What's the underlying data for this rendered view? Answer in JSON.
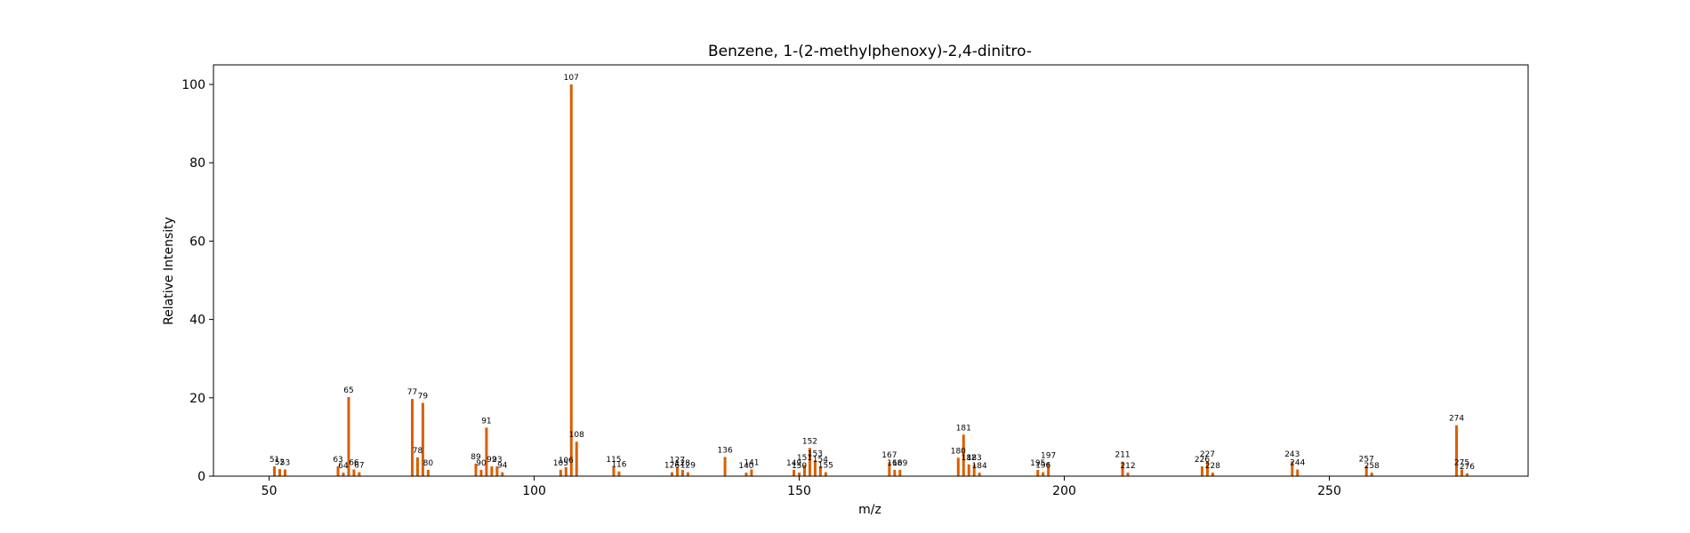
{
  "chart_data": {
    "type": "bar",
    "title": "Benzene, 1-(2-methylphenoxy)-2,4-dinitro-",
    "xlabel": "m/z",
    "ylabel": "Relative Intensity",
    "xlim": [
      39.5,
      287.5
    ],
    "ylim": [
      0,
      105
    ],
    "xticks": [
      50,
      100,
      150,
      200,
      250
    ],
    "yticks": [
      0,
      20,
      40,
      60,
      80,
      100
    ],
    "grid": false,
    "bar_color": "#d95f02",
    "peaks": [
      {
        "x": 51,
        "y": 2.5,
        "label": "51"
      },
      {
        "x": 52,
        "y": 1.8,
        "label": "52"
      },
      {
        "x": 53,
        "y": 1.7,
        "label": "53"
      },
      {
        "x": 63,
        "y": 2.5,
        "label": "63"
      },
      {
        "x": 64,
        "y": 0.9,
        "label": "64"
      },
      {
        "x": 65,
        "y": 20.2,
        "label": "65"
      },
      {
        "x": 66,
        "y": 1.7,
        "label": "66"
      },
      {
        "x": 67,
        "y": 1.0,
        "label": "67"
      },
      {
        "x": 77,
        "y": 19.7,
        "label": "77"
      },
      {
        "x": 78,
        "y": 4.8,
        "label": "78"
      },
      {
        "x": 79,
        "y": 18.7,
        "label": "79"
      },
      {
        "x": 80,
        "y": 1.6,
        "label": "80"
      },
      {
        "x": 89,
        "y": 3.2,
        "label": "89"
      },
      {
        "x": 90,
        "y": 1.6,
        "label": "90"
      },
      {
        "x": 91,
        "y": 12.4,
        "label": "91"
      },
      {
        "x": 92,
        "y": 2.5,
        "label": "92"
      },
      {
        "x": 93,
        "y": 2.5,
        "label": "93"
      },
      {
        "x": 94,
        "y": 1.0,
        "label": "94"
      },
      {
        "x": 105,
        "y": 1.6,
        "label": "105"
      },
      {
        "x": 106,
        "y": 2.3,
        "label": "106"
      },
      {
        "x": 107,
        "y": 100,
        "label": "107"
      },
      {
        "x": 108,
        "y": 8.8,
        "label": "108"
      },
      {
        "x": 115,
        "y": 2.5,
        "label": "115"
      },
      {
        "x": 116,
        "y": 1.2,
        "label": "116"
      },
      {
        "x": 126,
        "y": 1.0,
        "label": "126"
      },
      {
        "x": 127,
        "y": 2.4,
        "label": "127"
      },
      {
        "x": 128,
        "y": 1.6,
        "label": "128"
      },
      {
        "x": 129,
        "y": 1.0,
        "label": "129"
      },
      {
        "x": 136,
        "y": 4.9,
        "label": "136"
      },
      {
        "x": 140,
        "y": 0.9,
        "label": "140"
      },
      {
        "x": 141,
        "y": 1.7,
        "label": "141"
      },
      {
        "x": 149,
        "y": 1.6,
        "label": "149"
      },
      {
        "x": 150,
        "y": 0.9,
        "label": "150"
      },
      {
        "x": 151,
        "y": 2.9,
        "label": "151"
      },
      {
        "x": 152,
        "y": 7.2,
        "label": "152"
      },
      {
        "x": 153,
        "y": 4.0,
        "label": "153"
      },
      {
        "x": 154,
        "y": 2.5,
        "label": "154"
      },
      {
        "x": 155,
        "y": 1.0,
        "label": "155"
      },
      {
        "x": 167,
        "y": 3.6,
        "label": "167"
      },
      {
        "x": 168,
        "y": 1.6,
        "label": "168"
      },
      {
        "x": 169,
        "y": 1.6,
        "label": "169"
      },
      {
        "x": 180,
        "y": 4.7,
        "label": "180"
      },
      {
        "x": 181,
        "y": 10.6,
        "label": "181"
      },
      {
        "x": 182,
        "y": 3.0,
        "label": "182"
      },
      {
        "x": 183,
        "y": 3.0,
        "label": "183"
      },
      {
        "x": 184,
        "y": 0.9,
        "label": "184"
      },
      {
        "x": 195,
        "y": 1.6,
        "label": "195"
      },
      {
        "x": 196,
        "y": 1.0,
        "label": "196"
      },
      {
        "x": 197,
        "y": 3.5,
        "label": "197"
      },
      {
        "x": 211,
        "y": 3.7,
        "label": "211"
      },
      {
        "x": 212,
        "y": 0.9,
        "label": "212"
      },
      {
        "x": 226,
        "y": 2.5,
        "label": "226"
      },
      {
        "x": 227,
        "y": 3.8,
        "label": "227"
      },
      {
        "x": 228,
        "y": 0.9,
        "label": "228"
      },
      {
        "x": 243,
        "y": 3.8,
        "label": "243"
      },
      {
        "x": 244,
        "y": 1.7,
        "label": "244"
      },
      {
        "x": 257,
        "y": 2.6,
        "label": "257"
      },
      {
        "x": 258,
        "y": 0.9,
        "label": "258"
      },
      {
        "x": 274,
        "y": 13.0,
        "label": "274"
      },
      {
        "x": 275,
        "y": 1.7,
        "label": "275"
      },
      {
        "x": 276,
        "y": 0.7,
        "label": "276"
      }
    ]
  }
}
